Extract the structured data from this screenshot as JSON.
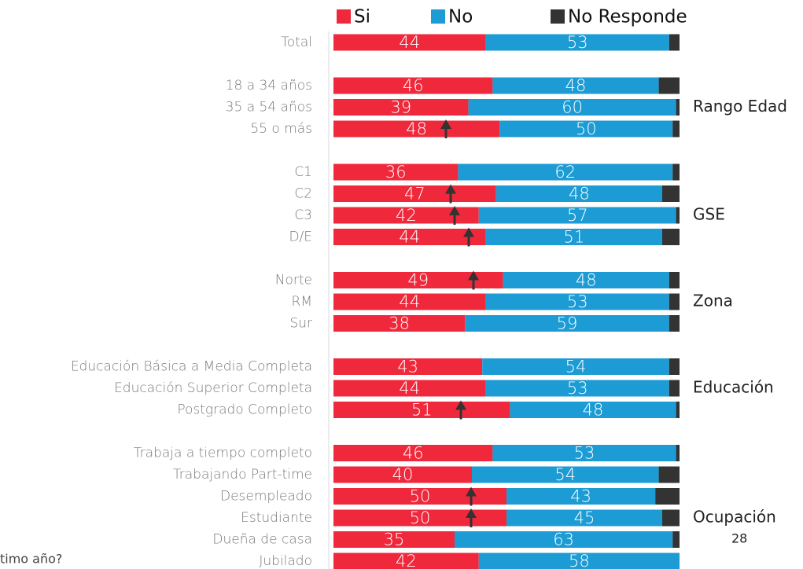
{
  "chart_data": {
    "type": "stacked_barh",
    "categories": [
      "Total",
      null,
      "18 a 34 años",
      "35 a 54 años",
      "55 o más",
      null,
      "C1",
      "C2",
      "C3",
      "D/E",
      null,
      "Norte",
      "RM",
      "Sur",
      null,
      "Educación Básica a Media Completa",
      "Educación Superior Completa",
      "Postgrado Completo",
      null,
      "Trabaja a tiempo completo",
      "Trabajando Part-time",
      "Desempleado",
      "Estudiante",
      "Dueña de casa",
      "Jubilado"
    ],
    "series": [
      {
        "name": "Si",
        "color": "#f0283c",
        "values": [
          44,
          null,
          46,
          39,
          48,
          null,
          36,
          47,
          42,
          44,
          null,
          49,
          44,
          38,
          null,
          43,
          44,
          51,
          null,
          46,
          40,
          50,
          50,
          35,
          42
        ]
      },
      {
        "name": "No",
        "color": "#1c9bd4",
        "values": [
          53,
          null,
          48,
          60,
          50,
          null,
          62,
          48,
          57,
          51,
          null,
          48,
          53,
          59,
          null,
          54,
          53,
          48,
          null,
          53,
          54,
          43,
          45,
          63,
          58
        ]
      },
      {
        "name": "No Responde",
        "color": "#333333",
        "values": [
          3,
          null,
          6,
          1,
          2,
          null,
          2,
          5,
          1,
          5,
          null,
          3,
          3,
          3,
          null,
          3,
          3,
          1,
          null,
          1,
          6,
          7,
          5,
          2,
          0
        ]
      }
    ],
    "xlim": [
      0,
      100
    ],
    "annotations": [
      "Rango Edad",
      "GSE",
      "Zona",
      "Educación",
      "Ocupación"
    ],
    "page_number": "28",
    "footnote": "timo año?"
  }
}
